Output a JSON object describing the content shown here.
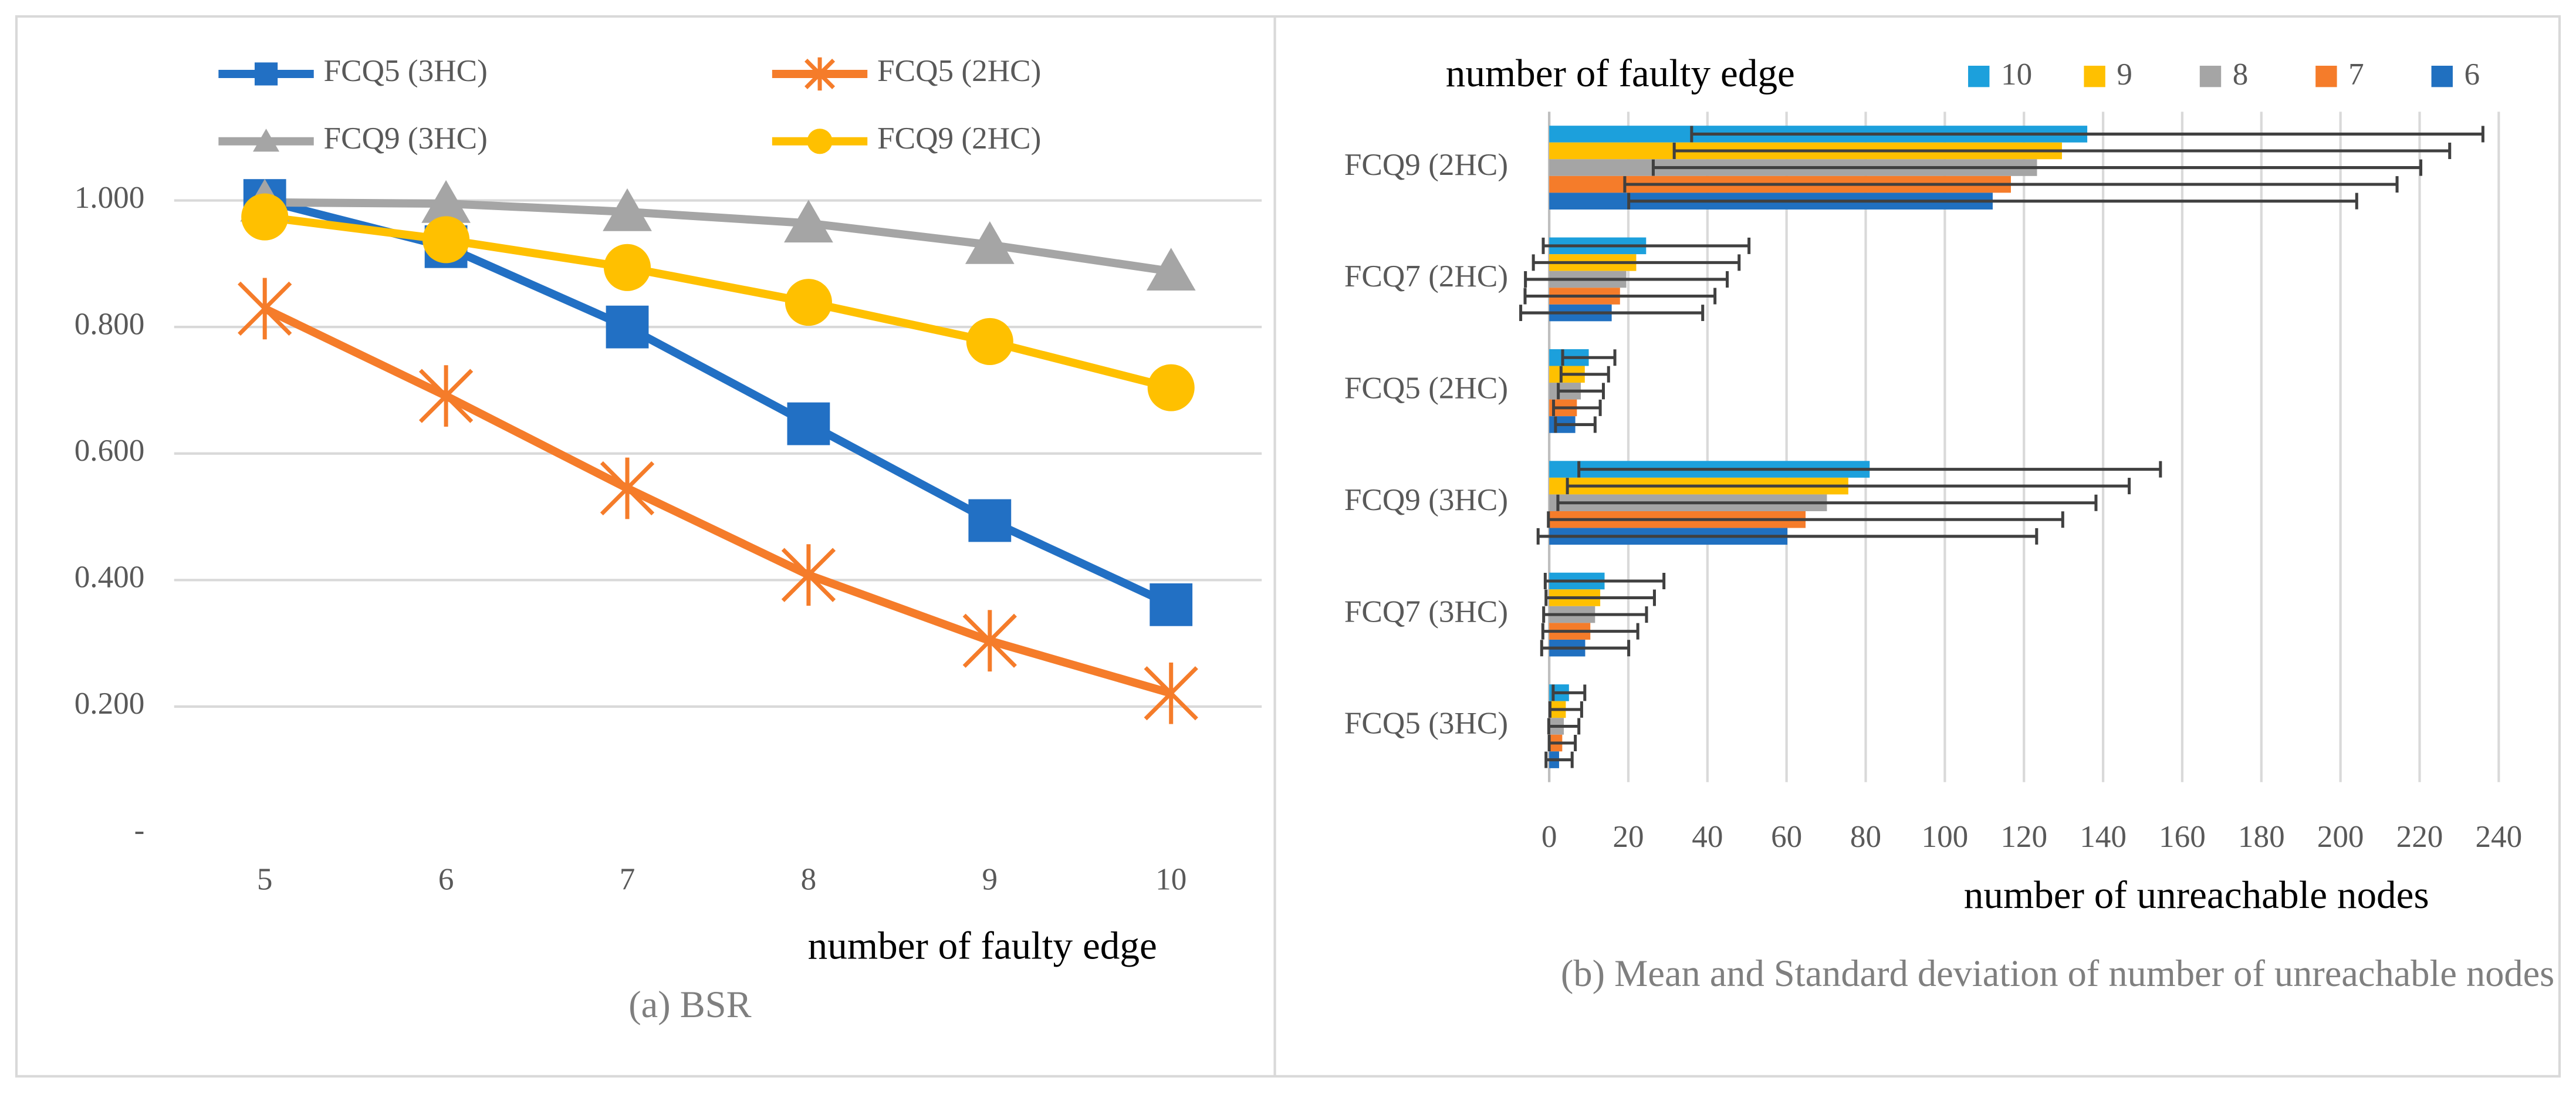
{
  "chart_data": [
    {
      "type": "line",
      "categories": [
        "5",
        "6",
        "7",
        "8",
        "9",
        "10"
      ],
      "series": [
        {
          "name": "FCQ5 (3HC)",
          "color": "#2270c4",
          "marker": "square",
          "values": [
            1.0,
            0.927,
            0.8,
            0.647,
            0.494,
            0.361
          ]
        },
        {
          "name": "FCQ5 (2HC)",
          "color": "#f57c2a",
          "marker": "star",
          "values": [
            0.829,
            0.691,
            0.545,
            0.408,
            0.304,
            0.221
          ]
        },
        {
          "name": "FCQ9 (3HC)",
          "color": "#a5a5a5",
          "marker": "triangle",
          "values": [
            0.997,
            0.995,
            0.982,
            0.964,
            0.93,
            0.888
          ]
        },
        {
          "name": "FCQ9 (2HC)",
          "color": "#ffc000",
          "marker": "circle",
          "values": [
            0.974,
            0.938,
            0.894,
            0.839,
            0.777,
            0.704
          ]
        }
      ],
      "ylim": [
        0,
        1.1
      ],
      "yticks": [
        {
          "value": 0,
          "label": "-"
        },
        {
          "value": 0.2,
          "label": "0.200"
        },
        {
          "value": 0.4,
          "label": "0.400"
        },
        {
          "value": 0.6,
          "label": "0.600"
        },
        {
          "value": 0.8,
          "label": "0.800"
        },
        {
          "value": 1.0,
          "label": "1.000"
        }
      ],
      "grid": true,
      "xlabel": "number of faulty edge",
      "caption": "(a) BSR"
    },
    {
      "type": "bar",
      "orientation": "horizontal",
      "categories": [
        "FCQ9 (2HC)",
        "FCQ7 (2HC)",
        "FCQ5 (2HC)",
        "FCQ9 (3HC)",
        "FCQ7 (3HC)",
        "FCQ5 (3HC)"
      ],
      "legend_title": "number of faulty edge",
      "series": [
        {
          "name": "10",
          "color": "#1ca0dc",
          "values": [
            136,
            24.5,
            10,
            81,
            14,
            5
          ],
          "errors": [
            100,
            26,
            6.6,
            73.5,
            15,
            4
          ]
        },
        {
          "name": "9",
          "color": "#ffc000",
          "values": [
            129.6,
            22,
            9,
            75.6,
            12.9,
            4.2
          ],
          "errors": [
            98,
            26,
            6,
            71,
            13.7,
            4
          ]
        },
        {
          "name": "8",
          "color": "#a5a5a5",
          "values": [
            123.3,
            19.5,
            8,
            70.2,
            11.6,
            3.7
          ],
          "errors": [
            97,
            25.5,
            5.7,
            68,
            13,
            3.8
          ]
        },
        {
          "name": "7",
          "color": "#f57c2a",
          "values": [
            116.7,
            17.9,
            7,
            64.8,
            10.4,
            3.3
          ],
          "errors": [
            97.6,
            24,
            5.9,
            65,
            12,
            3.3
          ]
        },
        {
          "name": "6",
          "color": "#2070c0",
          "values": [
            112.1,
            15.8,
            6.6,
            60.2,
            9.1,
            2.5
          ],
          "errors": [
            92,
            23,
            5,
            63,
            11,
            3.3
          ]
        }
      ],
      "xlim": [
        0,
        240
      ],
      "xticks": [
        0,
        20,
        40,
        60,
        80,
        100,
        120,
        140,
        160,
        180,
        200,
        220,
        240
      ],
      "grid": true,
      "xlabel": "number of unreachable nodes",
      "caption": "(b) Mean and Standard deviation of number of unreachable nodes"
    }
  ]
}
